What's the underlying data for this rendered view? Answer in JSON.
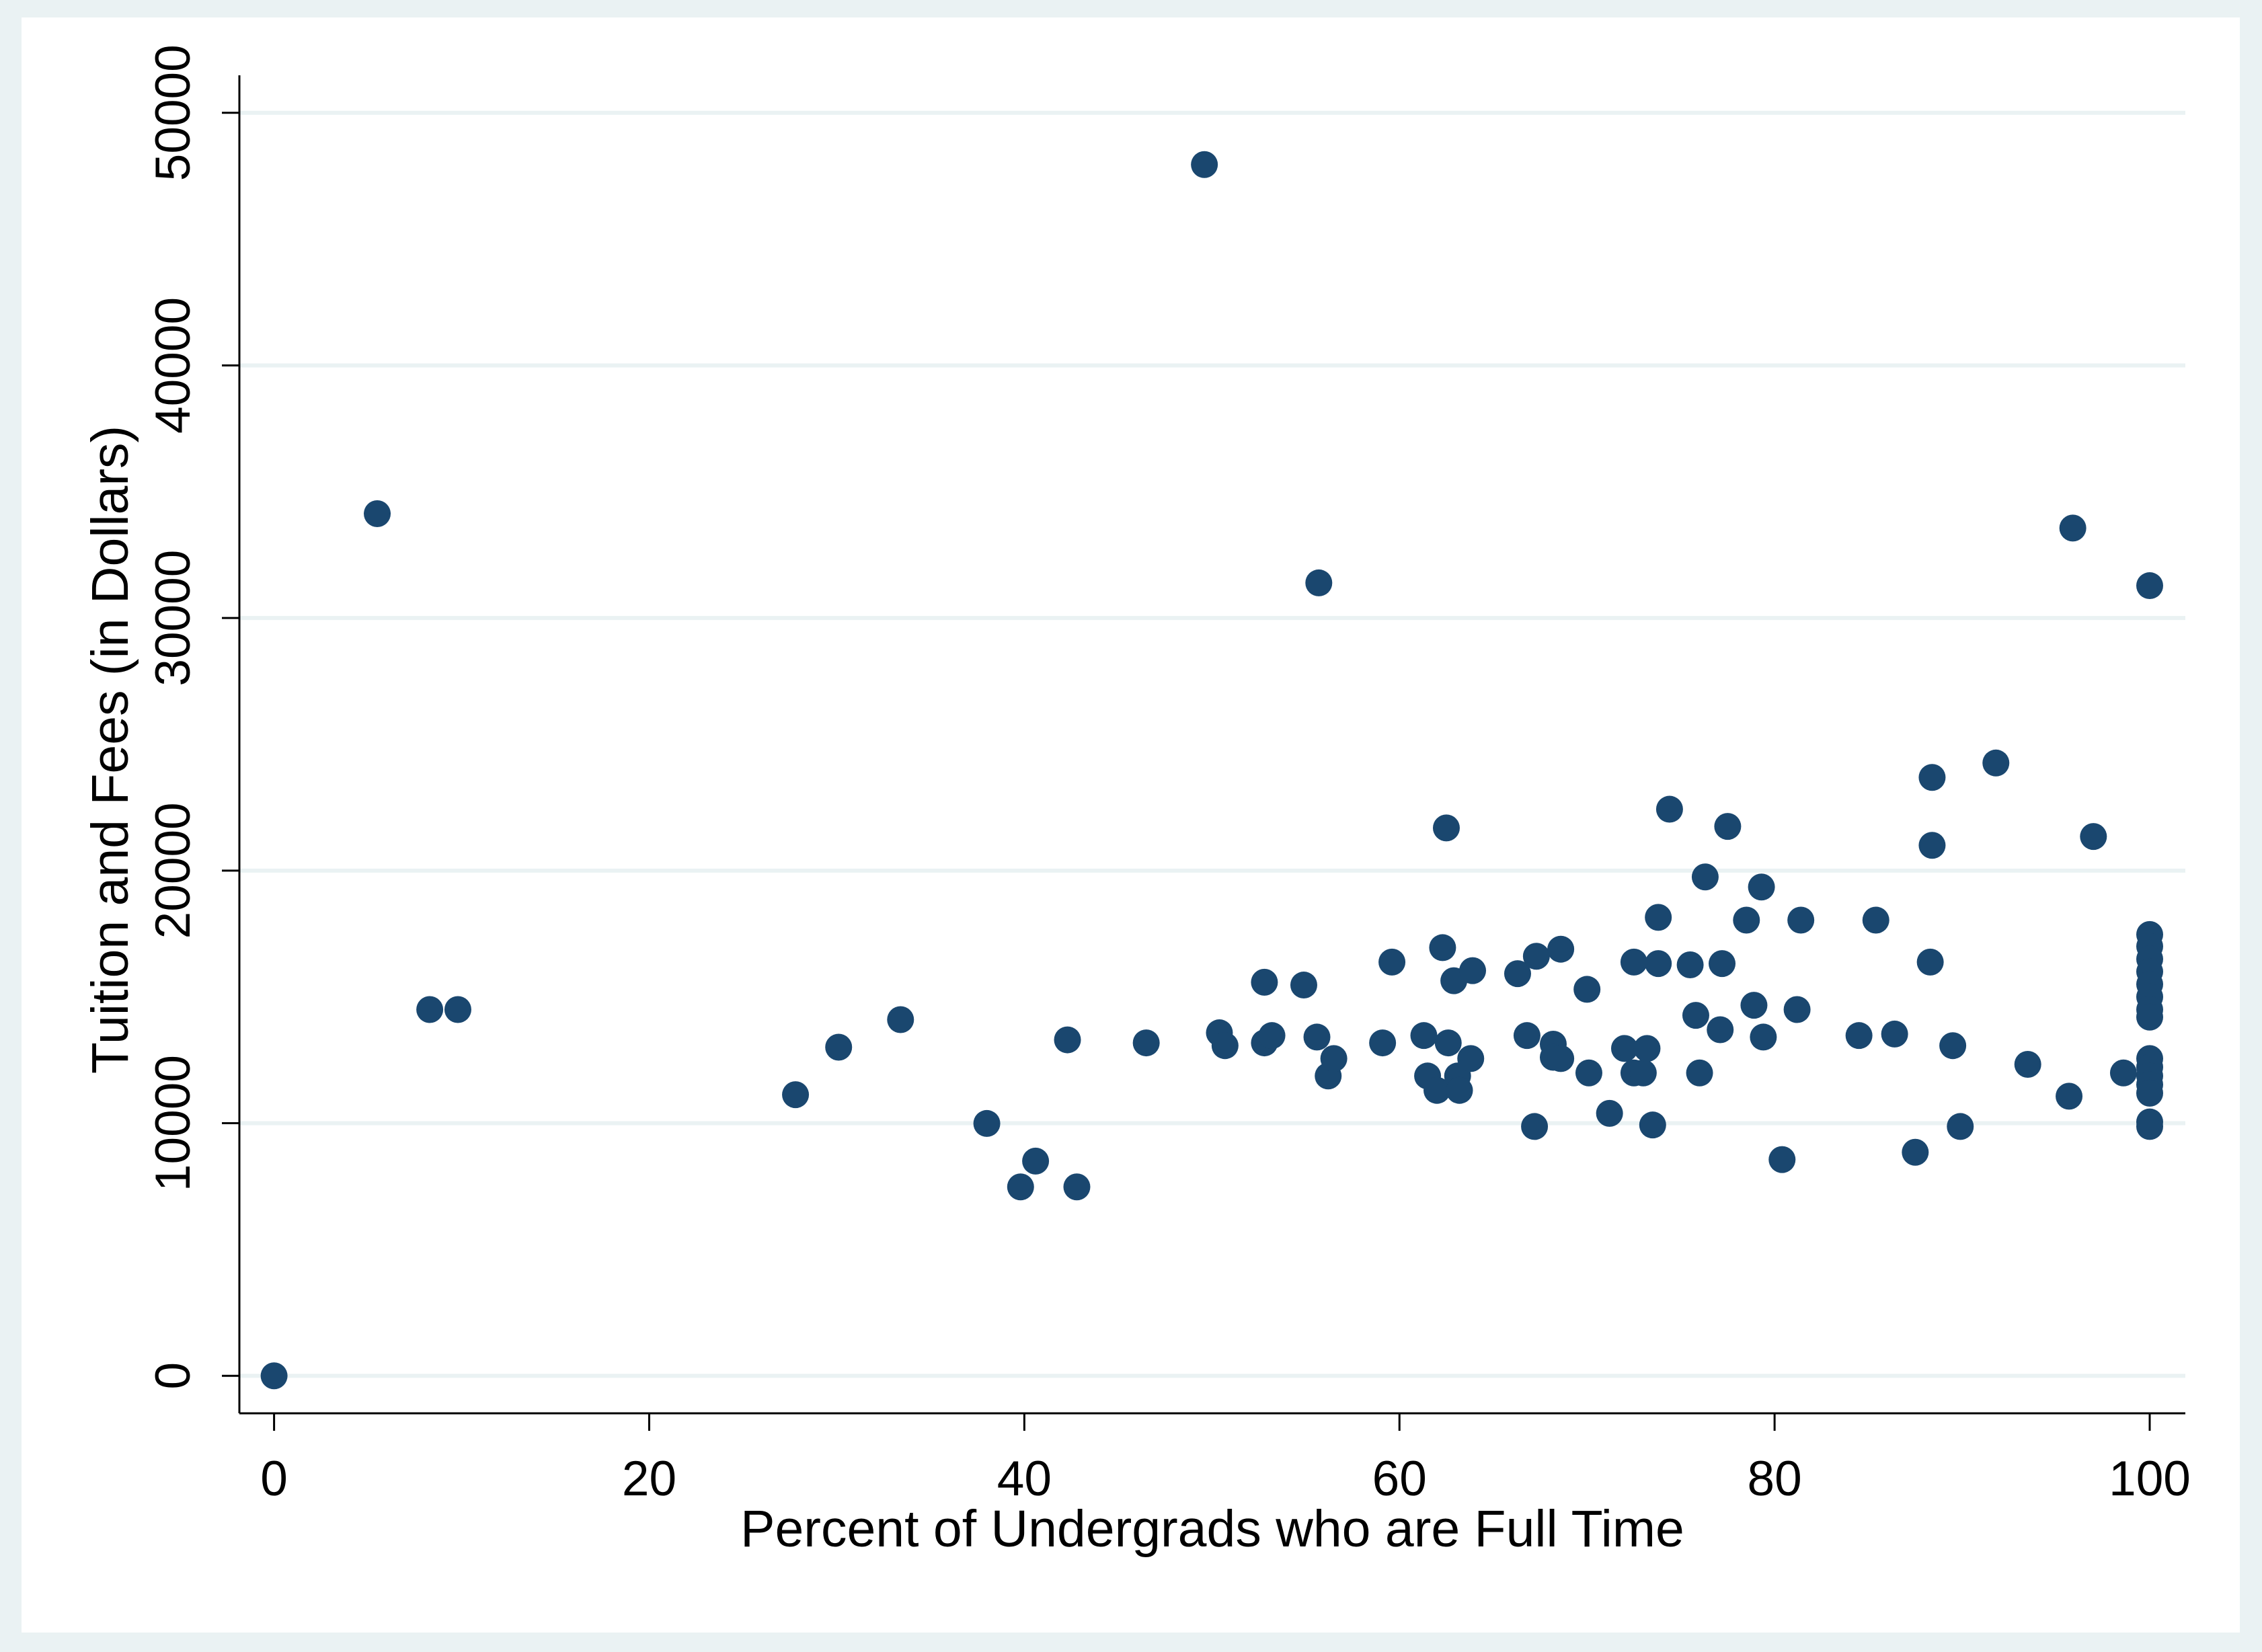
{
  "chart_data": {
    "type": "scatter",
    "x_label": "Percent of Undergrads who are Full Time",
    "y_label": "Tuition and Fees (in Dollars)",
    "color": "#1a476f",
    "grid": true,
    "xlim": [
      -1.85,
      101.9
    ],
    "ylim": [
      -1484,
      51484
    ],
    "xticks": [
      0,
      20,
      40,
      60,
      80,
      100
    ],
    "yticks": [
      0,
      10000,
      20000,
      30000,
      40000,
      50000
    ],
    "x": [
      0,
      5.5,
      8.3,
      9.8,
      27.8,
      30.1,
      33.4,
      38.0,
      39.8,
      40.6,
      42.3,
      42.8,
      46.5,
      49.6,
      50.4,
      50.7,
      52.8,
      52.8,
      53.2,
      54.9,
      55.7,
      55.6,
      56.2,
      56.5,
      59.1,
      59.6,
      61.3,
      61.5,
      62.0,
      62.3,
      62.5,
      62.6,
      62.9,
      63.1,
      63.2,
      63.8,
      63.9,
      66.3,
      66.8,
      67.2,
      67.3,
      68.2,
      68.2,
      68.6,
      68.6,
      70.0,
      70.1,
      71.2,
      72.0,
      72.5,
      72.5,
      73.0,
      73.2,
      73.5,
      73.8,
      73.8,
      74.4,
      75.5,
      75.8,
      76.0,
      76.3,
      77.1,
      77.2,
      77.5,
      78.5,
      78.9,
      79.3,
      79.4,
      80.4,
      81.2,
      81.4,
      84.5,
      85.4,
      86.4,
      87.5,
      88.4,
      88.4,
      88.3,
      89.5,
      89.9,
      91.8,
      93.5,
      95.7,
      95.9,
      97.0,
      98.6,
      100,
      100,
      100,
      100,
      100,
      100,
      100,
      100,
      100,
      100,
      100,
      100,
      100,
      100,
      100,
      100
    ],
    "values": [
      0,
      34130,
      14500,
      14500,
      11130,
      13010,
      14100,
      9990,
      7480,
      8500,
      13300,
      7480,
      13180,
      47950,
      13580,
      13070,
      15580,
      13180,
      13470,
      15470,
      31390,
      13410,
      11870,
      12560,
      13180,
      16380,
      13470,
      11870,
      11300,
      16950,
      21690,
      13180,
      15640,
      11870,
      11300,
      12560,
      16040,
      15920,
      13470,
      9870,
      16610,
      13130,
      12610,
      16890,
      12560,
      15300,
      11990,
      10390,
      12960,
      16380,
      11990,
      11990,
      12960,
      9930,
      16320,
      18150,
      22430,
      16270,
      14270,
      11990,
      19750,
      13700,
      16320,
      21750,
      18040,
      14670,
      19350,
      13410,
      8560,
      14500,
      18040,
      13470,
      18040,
      13530,
      8850,
      23690,
      21000,
      16380,
      13070,
      9870,
      24260,
      12330,
      11070,
      33560,
      21350,
      11990,
      31280,
      17470,
      17000,
      16500,
      16000,
      15500,
      15000,
      14500,
      14200,
      12560,
      12220,
      11870,
      11530,
      11190,
      10050,
      9870
    ]
  }
}
